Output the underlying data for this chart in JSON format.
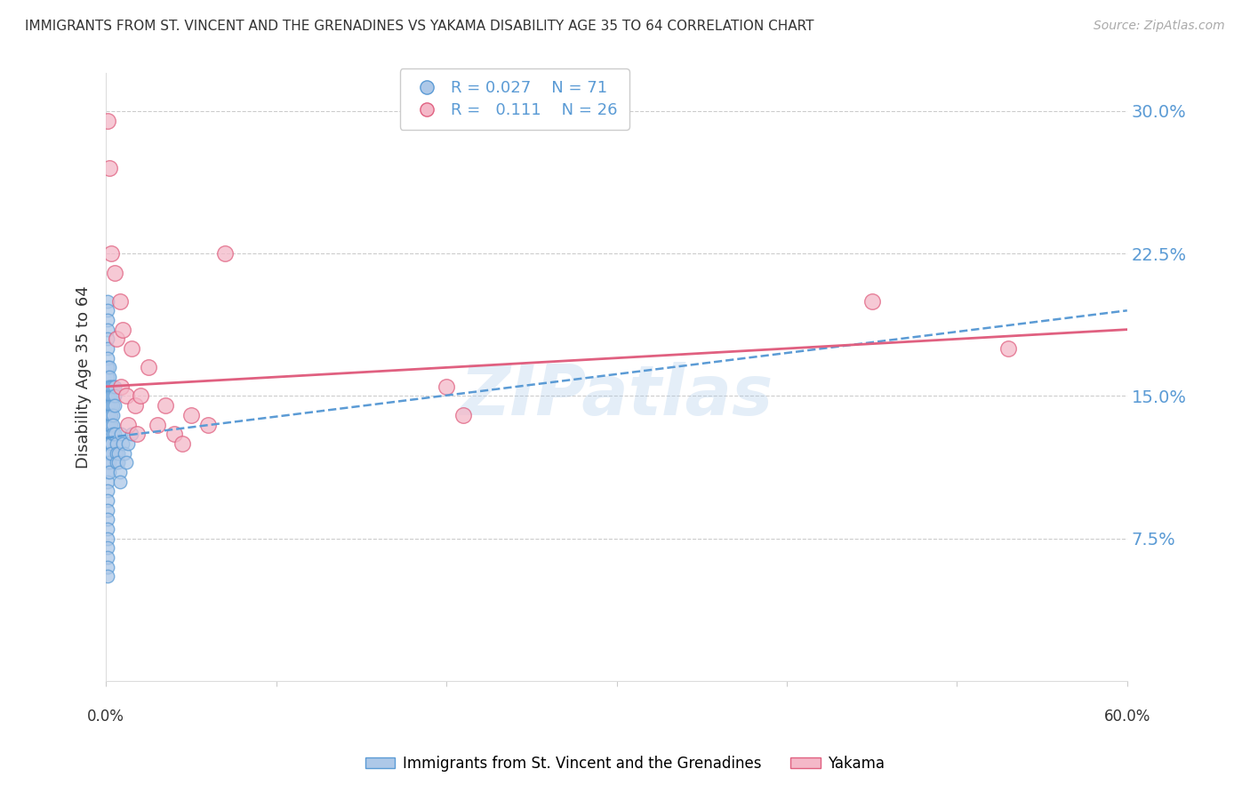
{
  "title": "IMMIGRANTS FROM ST. VINCENT AND THE GRENADINES VS YAKAMA DISABILITY AGE 35 TO 64 CORRELATION CHART",
  "source": "Source: ZipAtlas.com",
  "ylabel": "Disability Age 35 to 64",
  "yticks": [
    0.0,
    0.075,
    0.15,
    0.225,
    0.3
  ],
  "ytick_labels": [
    "",
    "7.5%",
    "15.0%",
    "22.5%",
    "30.0%"
  ],
  "xlim": [
    0.0,
    0.6
  ],
  "ylim": [
    0.0,
    0.32
  ],
  "legend_r_blue": "0.027",
  "legend_n_blue": "71",
  "legend_r_pink": "0.111",
  "legend_n_pink": "26",
  "legend_label_blue": "Immigrants from St. Vincent and the Grenadines",
  "legend_label_pink": "Yakama",
  "blue_color": "#adc8e8",
  "blue_edge_color": "#5b9bd5",
  "pink_color": "#f4b8c8",
  "pink_edge_color": "#e06080",
  "trend_blue_color": "#5b9bd5",
  "trend_pink_color": "#e06080",
  "watermark": "ZIPatlas",
  "blue_x": [
    0.001,
    0.001,
    0.001,
    0.001,
    0.001,
    0.001,
    0.001,
    0.001,
    0.001,
    0.001,
    0.001,
    0.001,
    0.001,
    0.001,
    0.001,
    0.001,
    0.001,
    0.001,
    0.001,
    0.001,
    0.001,
    0.001,
    0.001,
    0.001,
    0.001,
    0.001,
    0.001,
    0.001,
    0.001,
    0.001,
    0.002,
    0.002,
    0.002,
    0.002,
    0.002,
    0.002,
    0.002,
    0.002,
    0.002,
    0.002,
    0.002,
    0.003,
    0.003,
    0.003,
    0.003,
    0.003,
    0.003,
    0.003,
    0.004,
    0.004,
    0.004,
    0.004,
    0.004,
    0.004,
    0.005,
    0.005,
    0.005,
    0.005,
    0.006,
    0.006,
    0.006,
    0.007,
    0.007,
    0.008,
    0.008,
    0.009,
    0.01,
    0.011,
    0.012,
    0.013,
    0.015
  ],
  "blue_y": [
    0.2,
    0.195,
    0.19,
    0.185,
    0.18,
    0.175,
    0.17,
    0.165,
    0.16,
    0.155,
    0.15,
    0.145,
    0.14,
    0.135,
    0.13,
    0.125,
    0.12,
    0.115,
    0.11,
    0.105,
    0.1,
    0.095,
    0.09,
    0.085,
    0.08,
    0.075,
    0.07,
    0.065,
    0.06,
    0.055,
    0.165,
    0.16,
    0.155,
    0.15,
    0.145,
    0.14,
    0.135,
    0.125,
    0.12,
    0.115,
    0.11,
    0.155,
    0.15,
    0.145,
    0.14,
    0.135,
    0.125,
    0.12,
    0.155,
    0.15,
    0.145,
    0.14,
    0.135,
    0.13,
    0.155,
    0.15,
    0.145,
    0.13,
    0.125,
    0.12,
    0.115,
    0.12,
    0.115,
    0.11,
    0.105,
    0.13,
    0.125,
    0.12,
    0.115,
    0.125,
    0.13
  ],
  "pink_x": [
    0.001,
    0.002,
    0.003,
    0.005,
    0.006,
    0.008,
    0.009,
    0.01,
    0.012,
    0.013,
    0.015,
    0.017,
    0.018,
    0.02,
    0.025,
    0.03,
    0.035,
    0.04,
    0.045,
    0.05,
    0.06,
    0.07,
    0.2,
    0.21,
    0.45,
    0.53
  ],
  "pink_y": [
    0.295,
    0.27,
    0.225,
    0.215,
    0.18,
    0.2,
    0.155,
    0.185,
    0.15,
    0.135,
    0.175,
    0.145,
    0.13,
    0.15,
    0.165,
    0.135,
    0.145,
    0.13,
    0.125,
    0.14,
    0.135,
    0.225,
    0.155,
    0.14,
    0.2,
    0.175
  ],
  "blue_trend_x": [
    0.0,
    0.6
  ],
  "blue_trend_y": [
    0.128,
    0.195
  ],
  "pink_trend_x": [
    0.0,
    0.6
  ],
  "pink_trend_y": [
    0.155,
    0.185
  ]
}
